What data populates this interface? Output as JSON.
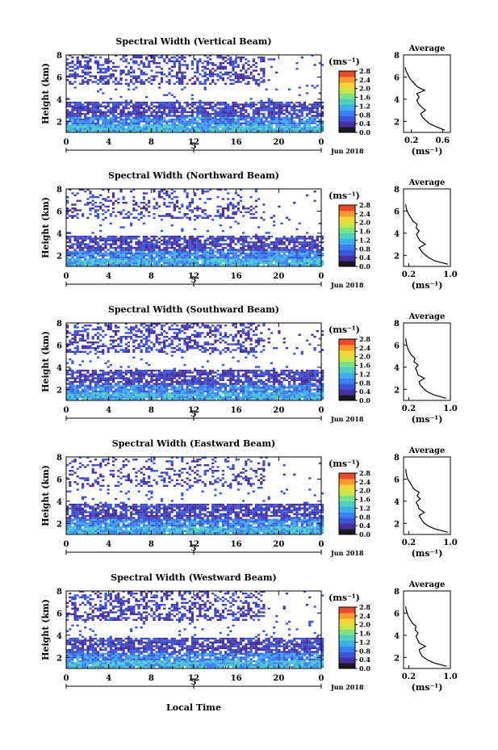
{
  "page": {
    "x_axis_label": "Local Time"
  },
  "chart_data": [
    {
      "type": "heatmap",
      "title": "Spectral Width (Vertical Beam)",
      "ylabel": "Height (km)",
      "ylim": [
        1,
        8
      ],
      "yticks": [
        "2",
        "4",
        "6",
        "8"
      ],
      "xlim": [
        0,
        24
      ],
      "xticks": [
        "0",
        "4",
        "8",
        "12",
        "16",
        "20",
        "0"
      ],
      "date_tick": "5",
      "date_label": "Jun 2018",
      "colorbar": {
        "unit": "(ms⁻¹)",
        "ticks": [
          "0.0",
          "0.4",
          "0.8",
          "1.2",
          "1.6",
          "2.0",
          "2.4",
          "2.8"
        ],
        "range": [
          0,
          2.8
        ]
      },
      "profile": {
        "title": "Average",
        "xlabel": "(ms⁻¹)",
        "xticks": [
          "0.2",
          "0.6"
        ],
        "xlim": [
          0.1,
          0.7
        ],
        "ylim": [
          1,
          8
        ],
        "yticks": [
          "2",
          "4",
          "6",
          "8"
        ],
        "height": [
          1.2,
          1.5,
          1.8,
          2.1,
          2.4,
          2.7,
          3.0,
          3.3,
          3.6,
          3.9,
          4.2,
          4.5,
          4.8,
          5.1,
          5.4,
          5.7,
          6.0,
          6.3,
          6.6,
          6.9
        ],
        "width": [
          0.63,
          0.52,
          0.43,
          0.38,
          0.34,
          0.32,
          0.38,
          0.33,
          0.29,
          0.27,
          0.3,
          0.27,
          0.37,
          0.28,
          0.24,
          0.2,
          0.17,
          0.15,
          0.13,
          0.12
        ]
      }
    },
    {
      "type": "heatmap",
      "title": "Spectral Width (Northward Beam)",
      "ylabel": "Height (km)",
      "ylim": [
        1,
        8
      ],
      "yticks": [
        "2",
        "4",
        "6",
        "8"
      ],
      "xlim": [
        0,
        24
      ],
      "xticks": [
        "0",
        "4",
        "8",
        "12",
        "16",
        "20",
        "0"
      ],
      "date_tick": "5",
      "date_label": "Jun 2018",
      "colorbar": {
        "unit": "(ms⁻¹)",
        "ticks": [
          "0.0",
          "0.4",
          "0.8",
          "1.2",
          "1.6",
          "2.0",
          "2.4",
          "2.8"
        ],
        "range": [
          0,
          2.8
        ]
      },
      "profile": {
        "title": "Average",
        "xlabel": "(ms⁻¹)",
        "xticks": [
          "0.2",
          "1.0"
        ],
        "xlim": [
          0.1,
          1.0
        ],
        "ylim": [
          1,
          8
        ],
        "yticks": [
          "2",
          "4",
          "6",
          "8"
        ],
        "height": [
          1.2,
          1.5,
          1.8,
          2.1,
          2.4,
          2.7,
          3.0,
          3.3,
          3.6,
          3.9,
          4.2,
          4.5,
          4.8,
          5.1,
          5.4,
          5.7,
          6.0,
          6.3,
          6.6
        ],
        "width": [
          0.95,
          0.7,
          0.58,
          0.5,
          0.44,
          0.4,
          0.52,
          0.42,
          0.38,
          0.35,
          0.4,
          0.34,
          0.36,
          0.28,
          0.24,
          0.2,
          0.17,
          0.15,
          0.14
        ]
      }
    },
    {
      "type": "heatmap",
      "title": "Spectral Width (Southward Beam)",
      "ylabel": "Height (km)",
      "ylim": [
        1,
        8
      ],
      "yticks": [
        "2",
        "4",
        "6",
        "8"
      ],
      "xlim": [
        0,
        24
      ],
      "xticks": [
        "0",
        "4",
        "8",
        "12",
        "16",
        "20",
        "0"
      ],
      "date_tick": "5",
      "date_label": "Jun 2018",
      "colorbar": {
        "unit": "(ms⁻¹)",
        "ticks": [
          "0.0",
          "0.4",
          "0.8",
          "1.2",
          "1.6",
          "2.0",
          "2.4",
          "2.8"
        ],
        "range": [
          0,
          2.8
        ]
      },
      "profile": {
        "title": "Average",
        "xlabel": "(ms⁻¹)",
        "xticks": [
          "0.2",
          "1.0"
        ],
        "xlim": [
          0.1,
          1.0
        ],
        "ylim": [
          1,
          8
        ],
        "yticks": [
          "2",
          "4",
          "6",
          "8"
        ],
        "height": [
          1.2,
          1.5,
          1.8,
          2.1,
          2.4,
          2.7,
          3.0,
          3.3,
          3.6,
          3.9,
          4.2,
          4.5,
          4.8,
          5.1,
          5.4,
          5.7,
          6.0,
          6.3,
          6.6
        ],
        "width": [
          0.92,
          0.68,
          0.55,
          0.48,
          0.42,
          0.4,
          0.5,
          0.38,
          0.36,
          0.33,
          0.38,
          0.3,
          0.32,
          0.25,
          0.21,
          0.18,
          0.16,
          0.15,
          0.14
        ]
      }
    },
    {
      "type": "heatmap",
      "title": "Spectral Width (Eastward Beam)",
      "ylabel": "Height (km)",
      "ylim": [
        1,
        8
      ],
      "yticks": [
        "2",
        "4",
        "6",
        "8"
      ],
      "xlim": [
        0,
        24
      ],
      "xticks": [
        "0",
        "4",
        "8",
        "12",
        "16",
        "20",
        "0"
      ],
      "date_tick": "5",
      "date_label": "Jun 2018",
      "colorbar": {
        "unit": "(ms⁻¹)",
        "ticks": [
          "0.0",
          "0.4",
          "0.8",
          "1.2",
          "1.6",
          "2.0",
          "2.4",
          "2.8"
        ],
        "range": [
          0,
          2.8
        ]
      },
      "profile": {
        "title": "Average",
        "xlabel": "(ms⁻¹)",
        "xticks": [
          "0.2",
          "1.0"
        ],
        "xlim": [
          0.1,
          1.0
        ],
        "ylim": [
          1,
          8
        ],
        "yticks": [
          "2",
          "4",
          "6",
          "8"
        ],
        "height": [
          1.2,
          1.5,
          1.8,
          2.1,
          2.4,
          2.7,
          3.0,
          3.3,
          3.6,
          3.9,
          4.2,
          4.5,
          4.8,
          5.1,
          5.4,
          5.7,
          6.0,
          6.3,
          6.6,
          6.9
        ],
        "width": [
          0.95,
          0.7,
          0.56,
          0.48,
          0.44,
          0.4,
          0.5,
          0.4,
          0.38,
          0.34,
          0.42,
          0.36,
          0.4,
          0.3,
          0.26,
          0.22,
          0.18,
          0.16,
          0.15,
          0.14
        ]
      }
    },
    {
      "type": "heatmap",
      "title": "Spectral Width (Westward Beam)",
      "ylabel": "Height (km)",
      "ylim": [
        1,
        8
      ],
      "yticks": [
        "2",
        "4",
        "6",
        "8"
      ],
      "xlim": [
        0,
        24
      ],
      "xticks": [
        "0",
        "4",
        "8",
        "12",
        "16",
        "20",
        "0"
      ],
      "date_tick": "5",
      "date_label": "Jun 2018",
      "colorbar": {
        "unit": "(ms⁻¹)",
        "ticks": [
          "0.0",
          "0.4",
          "0.8",
          "1.2",
          "1.6",
          "2.0",
          "2.4",
          "2.8"
        ],
        "range": [
          0,
          2.8
        ]
      },
      "profile": {
        "title": "Average",
        "xlabel": "(ms⁻¹)",
        "xticks": [
          "0.2",
          "1.0"
        ],
        "xlim": [
          0.1,
          1.0
        ],
        "ylim": [
          1,
          8
        ],
        "yticks": [
          "2",
          "4",
          "6",
          "8"
        ],
        "height": [
          1.2,
          1.5,
          1.8,
          2.1,
          2.4,
          2.7,
          3.0,
          3.3,
          3.6,
          3.9,
          4.2,
          4.5,
          4.8,
          5.1,
          5.4,
          5.7,
          6.0,
          6.3,
          6.6
        ],
        "width": [
          0.93,
          0.68,
          0.55,
          0.46,
          0.42,
          0.4,
          0.52,
          0.4,
          0.37,
          0.34,
          0.38,
          0.32,
          0.34,
          0.27,
          0.23,
          0.19,
          0.17,
          0.15,
          0.14
        ]
      }
    }
  ]
}
